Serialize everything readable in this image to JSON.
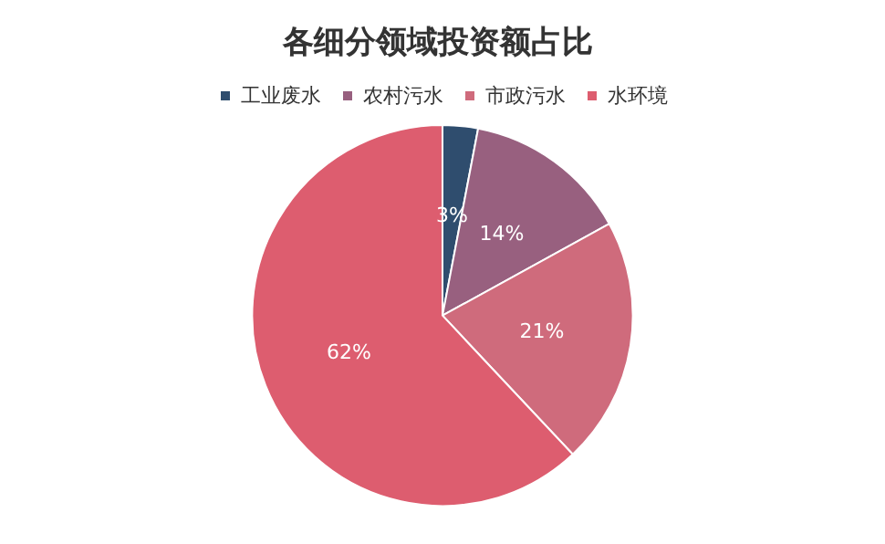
{
  "chart_data": {
    "type": "pie",
    "title": "各细分领域投资额占比",
    "categories": [
      "工业废水",
      "农村污水",
      "市政污水",
      "水环境"
    ],
    "values": [
      3,
      14,
      21,
      62
    ],
    "colors": [
      "#2f4d6e",
      "#98607f",
      "#cf6b7c",
      "#dd5d6f"
    ],
    "value_labels": [
      "3%",
      "14%",
      "21%",
      "62%"
    ],
    "legend": "top"
  }
}
